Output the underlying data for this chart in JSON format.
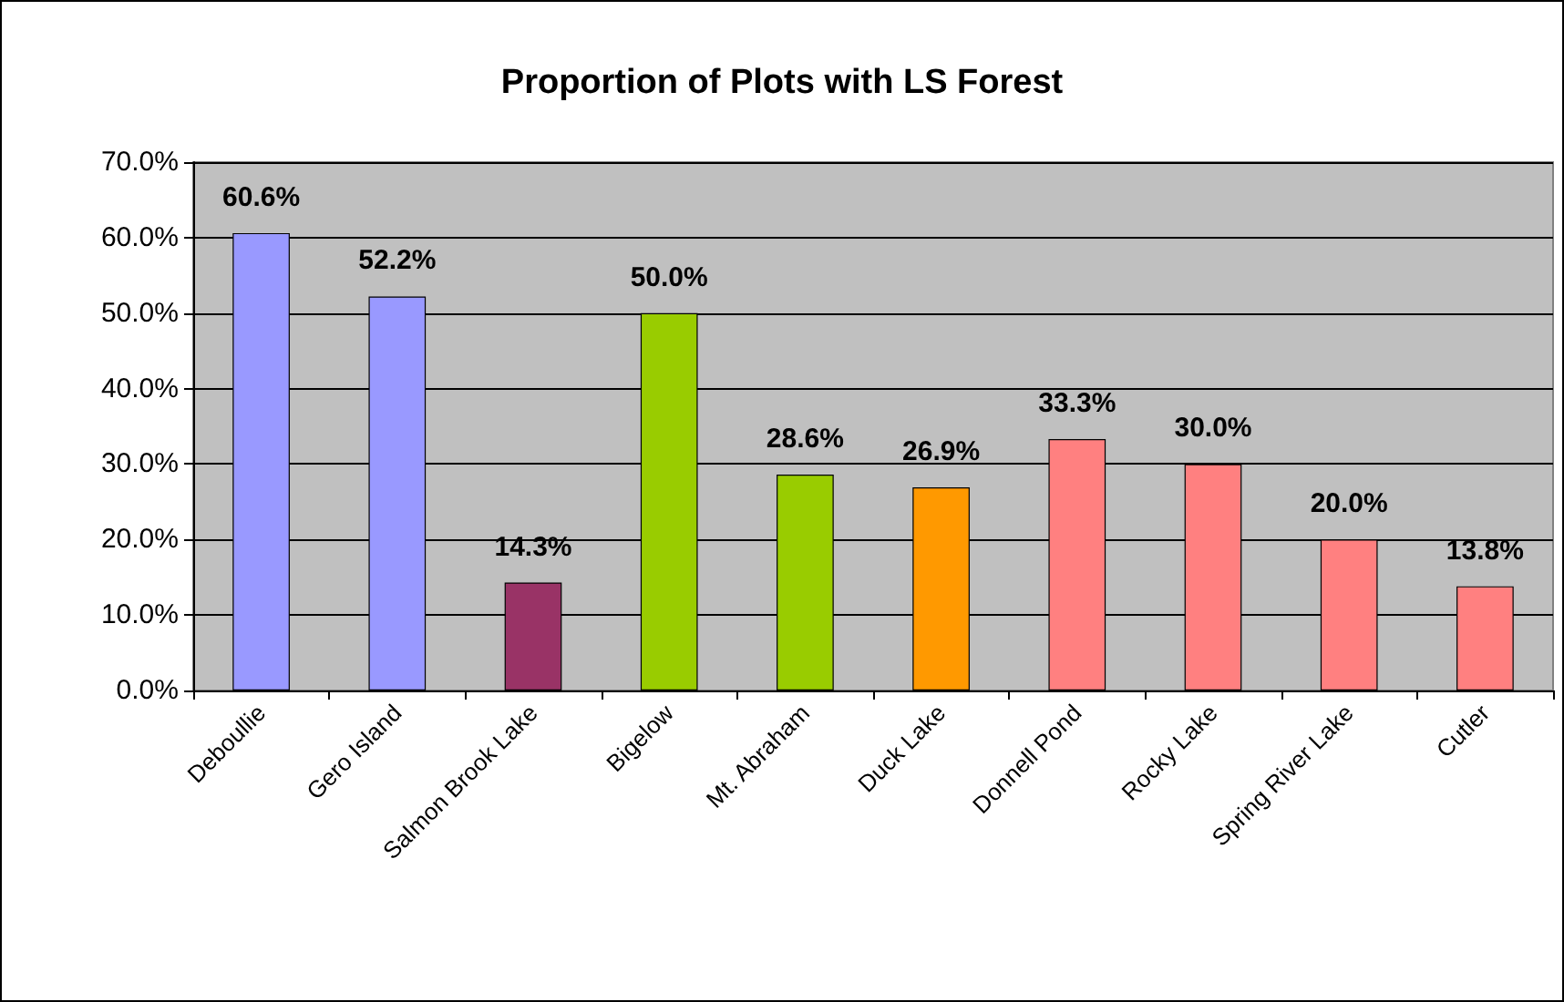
{
  "chart_data": {
    "type": "bar",
    "title": "Proportion of Plots with LS Forest",
    "categories": [
      "Deboullie",
      "Gero Island",
      "Salmon Brook Lake",
      "Bigelow",
      "Mt. Abraham",
      "Duck Lake",
      "Donnell Pond",
      "Rocky Lake",
      "Spring River Lake",
      "Cutler"
    ],
    "values": [
      60.6,
      52.2,
      14.3,
      50.0,
      28.6,
      26.9,
      33.3,
      30.0,
      20.0,
      13.8
    ],
    "colors": [
      "#9999ff",
      "#9999ff",
      "#993366",
      "#99cc00",
      "#99cc00",
      "#ff9900",
      "#ff8080",
      "#ff8080",
      "#ff8080",
      "#ff8080"
    ],
    "value_labels": [
      "60.6%",
      "52.2%",
      "14.3%",
      "50.0%",
      "28.6%",
      "26.9%",
      "33.3%",
      "30.0%",
      "20.0%",
      "13.8%"
    ],
    "ylim": [
      0,
      70
    ],
    "yticks": [
      {
        "value": 0,
        "label": "0.0%"
      },
      {
        "value": 10,
        "label": "10.0%"
      },
      {
        "value": 20,
        "label": "20.0%"
      },
      {
        "value": 30,
        "label": "30.0%"
      },
      {
        "value": 40,
        "label": "40.0%"
      },
      {
        "value": 50,
        "label": "50.0%"
      },
      {
        "value": 60,
        "label": "60.0%"
      },
      {
        "value": 70,
        "label": "70.0%"
      }
    ],
    "grid": "y"
  }
}
